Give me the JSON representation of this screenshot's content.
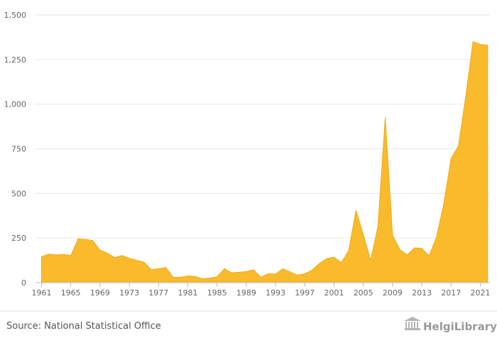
{
  "chart_data": {
    "type": "area",
    "title": "",
    "xlabel": "",
    "ylabel": "",
    "x": [
      1961,
      1962,
      1963,
      1964,
      1965,
      1966,
      1967,
      1968,
      1969,
      1970,
      1971,
      1972,
      1973,
      1974,
      1975,
      1976,
      1977,
      1978,
      1979,
      1980,
      1981,
      1982,
      1983,
      1984,
      1985,
      1986,
      1987,
      1988,
      1989,
      1990,
      1991,
      1992,
      1993,
      1994,
      1995,
      1996,
      1997,
      1998,
      1999,
      2000,
      2001,
      2002,
      2003,
      2004,
      2005,
      2006,
      2007,
      2008,
      2009,
      2010,
      2011,
      2012,
      2013,
      2014,
      2015,
      2016,
      2017,
      2018,
      2019,
      2020,
      2021,
      2022
    ],
    "values": [
      145,
      160,
      155,
      158,
      152,
      245,
      242,
      236,
      182,
      165,
      140,
      152,
      137,
      125,
      115,
      72,
      78,
      85,
      30,
      30,
      38,
      35,
      22,
      25,
      33,
      78,
      55,
      58,
      62,
      72,
      30,
      50,
      48,
      78,
      60,
      42,
      50,
      70,
      108,
      135,
      142,
      112,
      180,
      405,
      270,
      125,
      315,
      925,
      265,
      185,
      155,
      195,
      192,
      150,
      255,
      440,
      695,
      765,
      1040,
      1350,
      1335,
      1330
    ],
    "ylim": [
      0,
      1500
    ],
    "yticks": [
      0,
      250,
      500,
      750,
      1000,
      1250,
      1500
    ],
    "ytick_labels": [
      "0",
      "250",
      "500",
      "750",
      "1,000",
      "1,250",
      "1,500"
    ],
    "xticks": [
      1961,
      1965,
      1969,
      1973,
      1977,
      1981,
      1985,
      1989,
      1993,
      1997,
      2001,
      2005,
      2009,
      2013,
      2017,
      2021
    ],
    "grid": true,
    "fill_color": "#f9bb2c",
    "line_color": "#f2aa12"
  },
  "footer": {
    "source": "Source: National Statistical Office",
    "logo_text": "HelgiLibrary."
  }
}
